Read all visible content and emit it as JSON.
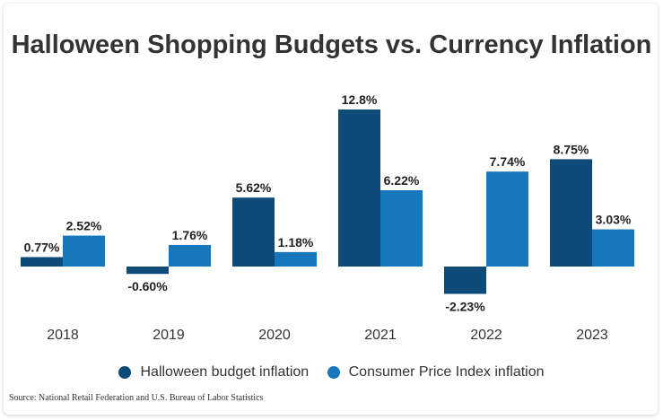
{
  "chart_data": {
    "type": "bar",
    "title": "Halloween Shopping Budgets vs. Currency Inflation",
    "categories": [
      "2018",
      "2019",
      "2020",
      "2021",
      "2022",
      "2023"
    ],
    "series": [
      {
        "name": "Halloween budget inflation",
        "color": "#0d4a78",
        "values": [
          0.77,
          -0.6,
          5.62,
          12.8,
          -2.23,
          8.75
        ],
        "labels": [
          "0.77%",
          "-0.60%",
          "5.62%",
          "12.8%",
          "-2.23%",
          "8.75%"
        ]
      },
      {
        "name": "Consumer Price Index inflation",
        "color": "#1876bd",
        "values": [
          2.52,
          1.76,
          1.18,
          6.22,
          7.74,
          3.03
        ],
        "labels": [
          "2.52%",
          "1.76%",
          "1.18%",
          "6.22%",
          "7.74%",
          "3.03%"
        ]
      }
    ],
    "ylim": [
      -2.23,
      12.8
    ],
    "grid": false,
    "legend_position": "bottom",
    "source": "Source: National Retail Federation and U.S. Bureau of Labor Statistics"
  }
}
